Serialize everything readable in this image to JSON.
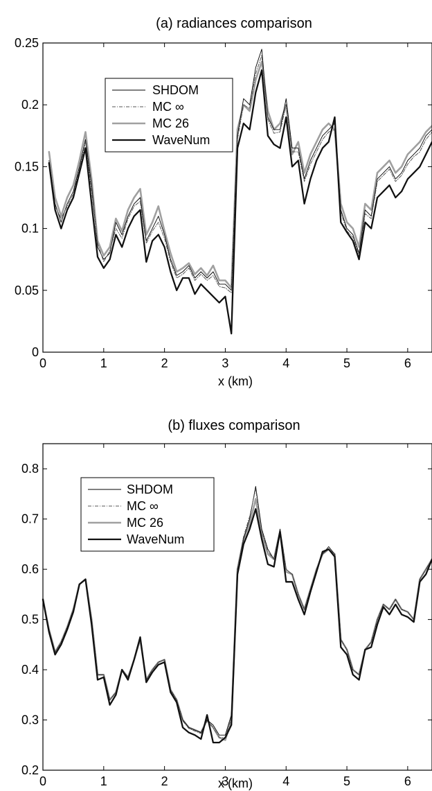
{
  "chart_data": [
    {
      "type": "line",
      "title": "(a)  radiances comparison",
      "xlabel": "x (km)",
      "ylabel": "",
      "xlim": [
        0,
        6.4
      ],
      "ylim": [
        0,
        0.25
      ],
      "xticks": [
        "0",
        "1",
        "2",
        "3",
        "4",
        "5",
        "6"
      ],
      "yticks": [
        "0",
        "0.05",
        "0.1",
        "0.15",
        "0.2",
        "0.25"
      ],
      "grid": false,
      "legend_position": "upper-left",
      "colors": {
        "SHDOM": "#000000",
        "MC_inf": "#555555",
        "MC_26": "#a0a0a0",
        "WaveNum": "#111111"
      },
      "x": [
        0.1,
        0.2,
        0.3,
        0.4,
        0.5,
        0.6,
        0.7,
        0.8,
        0.9,
        1.0,
        1.1,
        1.2,
        1.3,
        1.4,
        1.5,
        1.6,
        1.7,
        1.8,
        1.9,
        2.0,
        2.1,
        2.2,
        2.3,
        2.4,
        2.5,
        2.6,
        2.7,
        2.8,
        2.9,
        3.0,
        3.1,
        3.2,
        3.3,
        3.4,
        3.5,
        3.6,
        3.7,
        3.8,
        3.9,
        4.0,
        4.1,
        4.2,
        4.3,
        4.4,
        4.5,
        4.6,
        4.7,
        4.8,
        4.9,
        5.0,
        5.1,
        5.2,
        5.3,
        5.4,
        5.5,
        5.6,
        5.7,
        5.8,
        5.9,
        6.0,
        6.1,
        6.2,
        6.3,
        6.4
      ],
      "series": [
        {
          "name": "SHDOM",
          "values": [
            0.155,
            0.12,
            0.105,
            0.12,
            0.13,
            0.15,
            0.172,
            0.135,
            0.085,
            0.075,
            0.08,
            0.105,
            0.095,
            0.11,
            0.12,
            0.125,
            0.09,
            0.1,
            0.11,
            0.095,
            0.075,
            0.062,
            0.065,
            0.07,
            0.06,
            0.065,
            0.06,
            0.065,
            0.055,
            0.055,
            0.05,
            0.175,
            0.205,
            0.2,
            0.23,
            0.245,
            0.19,
            0.18,
            0.18,
            0.205,
            0.165,
            0.165,
            0.14,
            0.155,
            0.165,
            0.175,
            0.18,
            0.185,
            0.115,
            0.1,
            0.095,
            0.08,
            0.115,
            0.11,
            0.14,
            0.145,
            0.15,
            0.14,
            0.145,
            0.155,
            0.16,
            0.165,
            0.175,
            0.18
          ]
        },
        {
          "name": "MC ∞",
          "values": [
            0.155,
            0.118,
            0.108,
            0.118,
            0.128,
            0.148,
            0.17,
            0.13,
            0.088,
            0.073,
            0.082,
            0.1,
            0.092,
            0.108,
            0.118,
            0.122,
            0.088,
            0.098,
            0.105,
            0.092,
            0.073,
            0.06,
            0.063,
            0.068,
            0.058,
            0.063,
            0.058,
            0.062,
            0.053,
            0.052,
            0.048,
            0.172,
            0.2,
            0.197,
            0.225,
            0.24,
            0.188,
            0.177,
            0.178,
            0.2,
            0.162,
            0.162,
            0.138,
            0.152,
            0.162,
            0.172,
            0.178,
            0.18,
            0.113,
            0.098,
            0.093,
            0.078,
            0.112,
            0.108,
            0.138,
            0.143,
            0.148,
            0.138,
            0.143,
            0.152,
            0.158,
            0.162,
            0.172,
            0.178
          ]
        },
        {
          "name": "MC 26",
          "values": [
            0.162,
            0.125,
            0.11,
            0.125,
            0.135,
            0.155,
            0.178,
            0.14,
            0.09,
            0.078,
            0.085,
            0.108,
            0.098,
            0.115,
            0.125,
            0.132,
            0.095,
            0.105,
            0.118,
            0.098,
            0.08,
            0.065,
            0.068,
            0.072,
            0.063,
            0.068,
            0.062,
            0.07,
            0.058,
            0.058,
            0.052,
            0.18,
            0.2,
            0.195,
            0.22,
            0.235,
            0.195,
            0.18,
            0.185,
            0.2,
            0.16,
            0.17,
            0.145,
            0.16,
            0.17,
            0.18,
            0.185,
            0.18,
            0.12,
            0.105,
            0.1,
            0.085,
            0.12,
            0.115,
            0.145,
            0.15,
            0.155,
            0.145,
            0.15,
            0.16,
            0.165,
            0.17,
            0.178,
            0.183
          ]
        },
        {
          "name": "WaveNum",
          "values": [
            0.153,
            0.115,
            0.1,
            0.115,
            0.125,
            0.145,
            0.165,
            0.12,
            0.077,
            0.068,
            0.075,
            0.095,
            0.085,
            0.1,
            0.11,
            0.115,
            0.073,
            0.09,
            0.095,
            0.085,
            0.065,
            0.05,
            0.06,
            0.06,
            0.047,
            0.055,
            0.05,
            0.045,
            0.04,
            0.045,
            0.015,
            0.165,
            0.185,
            0.18,
            0.21,
            0.228,
            0.175,
            0.168,
            0.165,
            0.19,
            0.15,
            0.155,
            0.12,
            0.14,
            0.155,
            0.165,
            0.17,
            0.19,
            0.105,
            0.097,
            0.09,
            0.075,
            0.105,
            0.1,
            0.125,
            0.13,
            0.135,
            0.125,
            0.13,
            0.14,
            0.145,
            0.15,
            0.16,
            0.17
          ]
        }
      ]
    },
    {
      "type": "line",
      "title": "(b)  fluxes comparison",
      "xlabel": "x (km)",
      "ylabel": "",
      "xlim": [
        0,
        6.4
      ],
      "ylim": [
        0.2,
        0.85
      ],
      "xticks": [
        "0",
        "1",
        "2",
        "3",
        "4",
        "5",
        "6"
      ],
      "yticks": [
        "0.2",
        "0.3",
        "0.4",
        "0.5",
        "0.6",
        "0.7",
        "0.8"
      ],
      "grid": false,
      "legend_position": "upper-left",
      "colors": {
        "SHDOM": "#000000",
        "MC_inf": "#555555",
        "MC_26": "#a0a0a0",
        "WaveNum": "#111111"
      },
      "x": [
        0.0,
        0.1,
        0.2,
        0.3,
        0.4,
        0.5,
        0.6,
        0.7,
        0.8,
        0.9,
        1.0,
        1.1,
        1.2,
        1.3,
        1.4,
        1.5,
        1.6,
        1.7,
        1.8,
        1.9,
        2.0,
        2.1,
        2.2,
        2.3,
        2.4,
        2.5,
        2.6,
        2.7,
        2.8,
        2.9,
        3.0,
        3.1,
        3.2,
        3.3,
        3.4,
        3.5,
        3.6,
        3.7,
        3.8,
        3.9,
        4.0,
        4.1,
        4.2,
        4.3,
        4.4,
        4.5,
        4.6,
        4.7,
        4.8,
        4.9,
        5.0,
        5.1,
        5.2,
        5.3,
        5.4,
        5.5,
        5.6,
        5.7,
        5.8,
        5.9,
        6.0,
        6.1,
        6.2,
        6.3,
        6.4
      ],
      "series": [
        {
          "name": "SHDOM",
          "values": [
            0.54,
            0.48,
            0.435,
            0.455,
            0.485,
            0.52,
            0.57,
            0.58,
            0.5,
            0.39,
            0.39,
            0.34,
            0.355,
            0.4,
            0.385,
            0.42,
            0.46,
            0.38,
            0.4,
            0.415,
            0.42,
            0.36,
            0.34,
            0.3,
            0.285,
            0.28,
            0.275,
            0.3,
            0.29,
            0.27,
            0.27,
            0.31,
            0.6,
            0.66,
            0.7,
            0.765,
            0.68,
            0.64,
            0.62,
            0.68,
            0.6,
            0.59,
            0.55,
            0.52,
            0.56,
            0.6,
            0.63,
            0.645,
            0.63,
            0.46,
            0.44,
            0.4,
            0.39,
            0.44,
            0.455,
            0.5,
            0.53,
            0.52,
            0.54,
            0.52,
            0.515,
            0.5,
            0.58,
            0.6,
            0.62
          ]
        },
        {
          "name": "MC ∞",
          "values": [
            0.54,
            0.48,
            0.435,
            0.455,
            0.485,
            0.52,
            0.57,
            0.58,
            0.5,
            0.39,
            0.39,
            0.34,
            0.355,
            0.4,
            0.385,
            0.42,
            0.46,
            0.38,
            0.4,
            0.415,
            0.42,
            0.36,
            0.34,
            0.298,
            0.283,
            0.278,
            0.273,
            0.298,
            0.285,
            0.265,
            0.265,
            0.305,
            0.6,
            0.665,
            0.705,
            0.76,
            0.675,
            0.635,
            0.62,
            0.675,
            0.6,
            0.59,
            0.55,
            0.52,
            0.56,
            0.6,
            0.63,
            0.64,
            0.63,
            0.46,
            0.44,
            0.4,
            0.39,
            0.44,
            0.455,
            0.5,
            0.53,
            0.52,
            0.54,
            0.52,
            0.515,
            0.5,
            0.58,
            0.6,
            0.62
          ]
        },
        {
          "name": "MC 26",
          "values": [
            0.54,
            0.48,
            0.435,
            0.455,
            0.485,
            0.52,
            0.57,
            0.58,
            0.5,
            0.39,
            0.39,
            0.34,
            0.355,
            0.4,
            0.385,
            0.42,
            0.46,
            0.38,
            0.4,
            0.415,
            0.42,
            0.36,
            0.34,
            0.3,
            0.285,
            0.28,
            0.275,
            0.3,
            0.285,
            0.265,
            0.26,
            0.3,
            0.6,
            0.66,
            0.69,
            0.74,
            0.67,
            0.63,
            0.62,
            0.675,
            0.595,
            0.59,
            0.55,
            0.52,
            0.56,
            0.6,
            0.63,
            0.64,
            0.63,
            0.46,
            0.44,
            0.4,
            0.39,
            0.44,
            0.455,
            0.5,
            0.53,
            0.52,
            0.54,
            0.52,
            0.515,
            0.5,
            0.58,
            0.6,
            0.62
          ]
        },
        {
          "name": "WaveNum",
          "values": [
            0.54,
            0.475,
            0.43,
            0.45,
            0.48,
            0.515,
            0.57,
            0.58,
            0.49,
            0.38,
            0.385,
            0.33,
            0.35,
            0.4,
            0.38,
            0.42,
            0.465,
            0.375,
            0.395,
            0.41,
            0.415,
            0.355,
            0.335,
            0.285,
            0.275,
            0.27,
            0.262,
            0.31,
            0.255,
            0.255,
            0.265,
            0.29,
            0.59,
            0.65,
            0.68,
            0.72,
            0.66,
            0.61,
            0.605,
            0.675,
            0.575,
            0.575,
            0.54,
            0.51,
            0.555,
            0.595,
            0.635,
            0.64,
            0.625,
            0.445,
            0.43,
            0.39,
            0.38,
            0.44,
            0.445,
            0.49,
            0.525,
            0.51,
            0.53,
            0.51,
            0.505,
            0.495,
            0.575,
            0.59,
            0.62
          ]
        }
      ]
    }
  ]
}
